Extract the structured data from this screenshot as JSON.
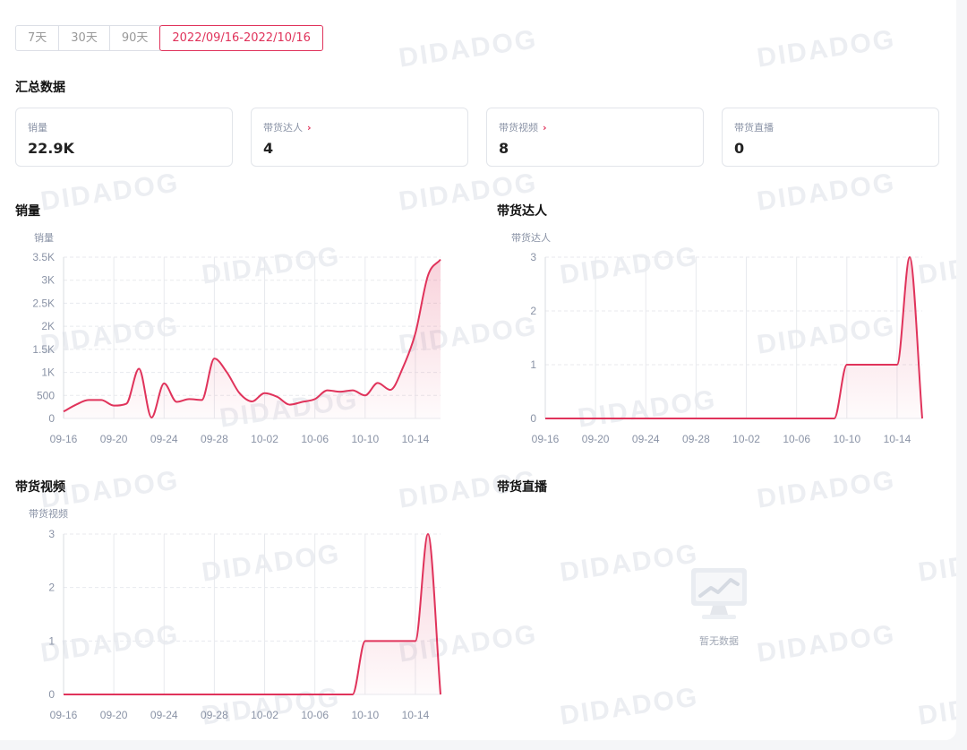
{
  "range_tabs": [
    {
      "label": "7天",
      "active": false
    },
    {
      "label": "30天",
      "active": false
    },
    {
      "label": "90天",
      "active": false
    },
    {
      "label": "2022/09/16-2022/10/16",
      "active": true
    }
  ],
  "summary": {
    "title": "汇总数据",
    "cards": [
      {
        "label": "销量",
        "value": "22.9K",
        "has_link": false
      },
      {
        "label": "带货达人",
        "value": "4",
        "has_link": true
      },
      {
        "label": "带货视频",
        "value": "8",
        "has_link": true
      },
      {
        "label": "带货直播",
        "value": "0",
        "has_link": false
      }
    ]
  },
  "watermark": "DIDADOG",
  "colors": {
    "accent": "#e0335b",
    "grid": "#e8eaee",
    "axis_text": "#8a93a6"
  },
  "empty_chart": {
    "title": "带货直播",
    "message": "暂无数据",
    "icon": "empty-chart-icon"
  },
  "chart_data": [
    {
      "type": "area",
      "title": "销量",
      "ylabel": "销量",
      "ylim": [
        0,
        3500
      ],
      "yticks": [
        0,
        500,
        1000,
        1500,
        2000,
        2500,
        3000,
        3500
      ],
      "ytick_labels": [
        "0",
        "500",
        "1K",
        "1.5K",
        "2K",
        "2.5K",
        "3K",
        "3.5K"
      ],
      "xtick_labels": [
        "09-16",
        "09-20",
        "09-24",
        "09-28",
        "10-02",
        "10-06",
        "10-10",
        "10-14"
      ],
      "x": [
        "09-16",
        "09-17",
        "09-18",
        "09-19",
        "09-20",
        "09-21",
        "09-22",
        "09-23",
        "09-24",
        "09-25",
        "09-26",
        "09-27",
        "09-28",
        "09-29",
        "09-30",
        "10-01",
        "10-02",
        "10-03",
        "10-04",
        "10-05",
        "10-06",
        "10-07",
        "10-08",
        "10-09",
        "10-10",
        "10-11",
        "10-12",
        "10-13",
        "10-14",
        "10-15",
        "10-16"
      ],
      "series": [
        {
          "values": [
            150,
            300,
            400,
            400,
            280,
            320,
            1080,
            20,
            760,
            360,
            420,
            400,
            1300,
            1000,
            550,
            370,
            550,
            470,
            300,
            360,
            420,
            610,
            580,
            610,
            500,
            770,
            620,
            1100,
            1850,
            3100,
            3450
          ]
        }
      ]
    },
    {
      "type": "area",
      "title": "带货达人",
      "ylabel": "带货达人",
      "ylim": [
        0,
        3
      ],
      "yticks": [
        0,
        1,
        2,
        3
      ],
      "ytick_labels": [
        "0",
        "1",
        "2",
        "3"
      ],
      "xtick_labels": [
        "09-16",
        "09-20",
        "09-24",
        "09-28",
        "10-02",
        "10-06",
        "10-10",
        "10-14"
      ],
      "x": [
        "09-16",
        "09-17",
        "09-18",
        "09-19",
        "09-20",
        "09-21",
        "09-22",
        "09-23",
        "09-24",
        "09-25",
        "09-26",
        "09-27",
        "09-28",
        "09-29",
        "09-30",
        "10-01",
        "10-02",
        "10-03",
        "10-04",
        "10-05",
        "10-06",
        "10-07",
        "10-08",
        "10-09",
        "10-10",
        "10-11",
        "10-12",
        "10-13",
        "10-14",
        "10-15",
        "10-16"
      ],
      "series": [
        {
          "values": [
            0,
            0,
            0,
            0,
            0,
            0,
            0,
            0,
            0,
            0,
            0,
            0,
            0,
            0,
            0,
            0,
            0,
            0,
            0,
            0,
            0,
            0,
            0,
            0,
            1,
            1,
            1,
            1,
            1,
            3,
            0
          ]
        }
      ]
    },
    {
      "type": "area",
      "title": "带货视频",
      "ylabel": "带货视频",
      "ylim": [
        0,
        3
      ],
      "yticks": [
        0,
        1,
        2,
        3
      ],
      "ytick_labels": [
        "0",
        "1",
        "2",
        "3"
      ],
      "xtick_labels": [
        "09-16",
        "09-20",
        "09-24",
        "09-28",
        "10-02",
        "10-06",
        "10-10",
        "10-14"
      ],
      "x": [
        "09-16",
        "09-17",
        "09-18",
        "09-19",
        "09-20",
        "09-21",
        "09-22",
        "09-23",
        "09-24",
        "09-25",
        "09-26",
        "09-27",
        "09-28",
        "09-29",
        "09-30",
        "10-01",
        "10-02",
        "10-03",
        "10-04",
        "10-05",
        "10-06",
        "10-07",
        "10-08",
        "10-09",
        "10-10",
        "10-11",
        "10-12",
        "10-13",
        "10-14",
        "10-15",
        "10-16"
      ],
      "series": [
        {
          "values": [
            0,
            0,
            0,
            0,
            0,
            0,
            0,
            0,
            0,
            0,
            0,
            0,
            0,
            0,
            0,
            0,
            0,
            0,
            0,
            0,
            0,
            0,
            0,
            0,
            1,
            1,
            1,
            1,
            1,
            3,
            0
          ]
        }
      ]
    }
  ]
}
